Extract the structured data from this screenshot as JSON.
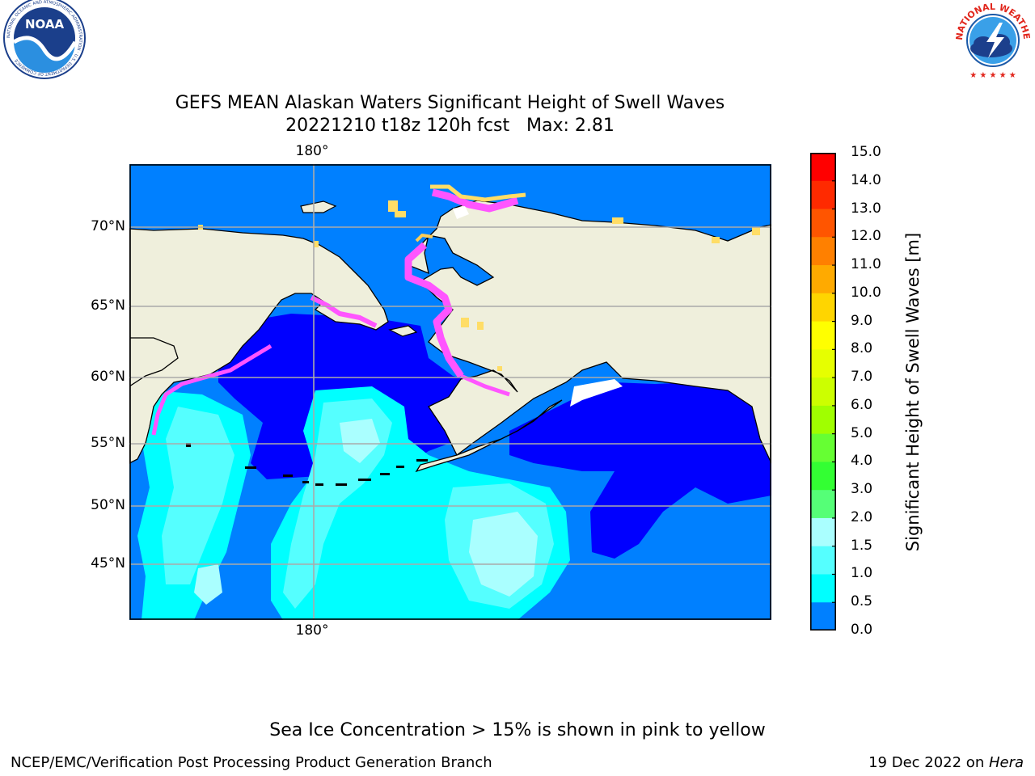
{
  "header": {
    "title_line1": "GEFS MEAN Alaskan Waters Significant Height of Swell Waves",
    "title_line2": "20221210 t18z 120h fcst   Max: 2.81",
    "left_logo": "noaa-logo",
    "right_logo": "national-weather-service-logo",
    "nws_logo_text": "NATIONAL WEATHER SERVICE",
    "noaa_logo_text": "NOAA",
    "noaa_ring_text": "NATIONAL OCEANIC AND ATMOSPHERIC ADMINISTRATION · U.S. DEPARTMENT OF COMMERCE"
  },
  "map": {
    "lon_label_top": "180°",
    "lon_label_bottom": "180°",
    "lat_labels": [
      {
        "text": "70°N"
      },
      {
        "text": "65°N"
      },
      {
        "text": "60°N"
      },
      {
        "text": "55°N"
      },
      {
        "text": "50°N"
      },
      {
        "text": "45°N"
      }
    ],
    "colors": {
      "land": "#efefdc",
      "ocean_0_05": "#0000ff",
      "ocean_05_10": "#0080ff",
      "ocean_10_15": "#00ffff",
      "ocean_15_20": "#55ffff",
      "ocean_20_30": "#aaffff",
      "ice_pink": "#ff55ff",
      "ice_yellow": "#ffdd66",
      "grid": "#aaaaaa"
    }
  },
  "colorbar": {
    "title": "Significant Height of Swell Waves [m]",
    "tick_labels": [
      "15.0",
      "14.0",
      "13.0",
      "12.0",
      "11.0",
      "10.0",
      "9.0",
      "8.0",
      "7.0",
      "6.0",
      "5.0",
      "4.0",
      "3.0",
      "2.0",
      "1.5",
      "1.0",
      "0.5",
      "0.0"
    ],
    "segment_colors": [
      "#ff0000",
      "#ff2a00",
      "#ff5500",
      "#ff8000",
      "#ffaa00",
      "#ffd500",
      "#ffff00",
      "#e6ff00",
      "#ccff00",
      "#a0ff00",
      "#66ff33",
      "#33ff33",
      "#00e040",
      "#55ff77",
      "#aaffff",
      "#55ffff",
      "#00ffff",
      "#0080ff",
      "#0000ff"
    ]
  },
  "footer": {
    "note": "Sea Ice Concentration > 15% is shown in pink to yellow",
    "credit": "NCEP/EMC/Verification Post Processing Product Generation Branch",
    "date": "19 Dec 2022 on ",
    "machine": "Hera"
  }
}
